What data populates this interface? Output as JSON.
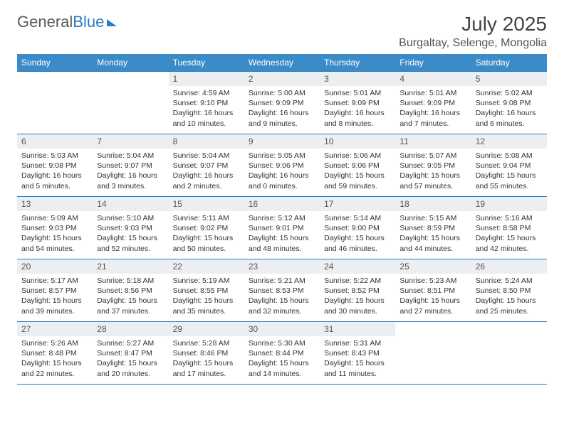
{
  "brand": {
    "part1": "General",
    "part2": "Blue"
  },
  "title": "July 2025",
  "location": "Burgaltay, Selenge, Mongolia",
  "colors": {
    "header_bg": "#3b8bc9",
    "border": "#2d7bc0",
    "daynum_bg": "#eceff1",
    "text": "#333333"
  },
  "day_labels": [
    "Sunday",
    "Monday",
    "Tuesday",
    "Wednesday",
    "Thursday",
    "Friday",
    "Saturday"
  ],
  "weeks": [
    [
      null,
      null,
      {
        "n": "1",
        "sr": "4:59 AM",
        "ss": "9:10 PM",
        "dl": "16 hours and 10 minutes."
      },
      {
        "n": "2",
        "sr": "5:00 AM",
        "ss": "9:09 PM",
        "dl": "16 hours and 9 minutes."
      },
      {
        "n": "3",
        "sr": "5:01 AM",
        "ss": "9:09 PM",
        "dl": "16 hours and 8 minutes."
      },
      {
        "n": "4",
        "sr": "5:01 AM",
        "ss": "9:09 PM",
        "dl": "16 hours and 7 minutes."
      },
      {
        "n": "5",
        "sr": "5:02 AM",
        "ss": "9:08 PM",
        "dl": "16 hours and 6 minutes."
      }
    ],
    [
      {
        "n": "6",
        "sr": "5:03 AM",
        "ss": "9:08 PM",
        "dl": "16 hours and 5 minutes."
      },
      {
        "n": "7",
        "sr": "5:04 AM",
        "ss": "9:07 PM",
        "dl": "16 hours and 3 minutes."
      },
      {
        "n": "8",
        "sr": "5:04 AM",
        "ss": "9:07 PM",
        "dl": "16 hours and 2 minutes."
      },
      {
        "n": "9",
        "sr": "5:05 AM",
        "ss": "9:06 PM",
        "dl": "16 hours and 0 minutes."
      },
      {
        "n": "10",
        "sr": "5:06 AM",
        "ss": "9:06 PM",
        "dl": "15 hours and 59 minutes."
      },
      {
        "n": "11",
        "sr": "5:07 AM",
        "ss": "9:05 PM",
        "dl": "15 hours and 57 minutes."
      },
      {
        "n": "12",
        "sr": "5:08 AM",
        "ss": "9:04 PM",
        "dl": "15 hours and 55 minutes."
      }
    ],
    [
      {
        "n": "13",
        "sr": "5:09 AM",
        "ss": "9:03 PM",
        "dl": "15 hours and 54 minutes."
      },
      {
        "n": "14",
        "sr": "5:10 AM",
        "ss": "9:03 PM",
        "dl": "15 hours and 52 minutes."
      },
      {
        "n": "15",
        "sr": "5:11 AM",
        "ss": "9:02 PM",
        "dl": "15 hours and 50 minutes."
      },
      {
        "n": "16",
        "sr": "5:12 AM",
        "ss": "9:01 PM",
        "dl": "15 hours and 48 minutes."
      },
      {
        "n": "17",
        "sr": "5:14 AM",
        "ss": "9:00 PM",
        "dl": "15 hours and 46 minutes."
      },
      {
        "n": "18",
        "sr": "5:15 AM",
        "ss": "8:59 PM",
        "dl": "15 hours and 44 minutes."
      },
      {
        "n": "19",
        "sr": "5:16 AM",
        "ss": "8:58 PM",
        "dl": "15 hours and 42 minutes."
      }
    ],
    [
      {
        "n": "20",
        "sr": "5:17 AM",
        "ss": "8:57 PM",
        "dl": "15 hours and 39 minutes."
      },
      {
        "n": "21",
        "sr": "5:18 AM",
        "ss": "8:56 PM",
        "dl": "15 hours and 37 minutes."
      },
      {
        "n": "22",
        "sr": "5:19 AM",
        "ss": "8:55 PM",
        "dl": "15 hours and 35 minutes."
      },
      {
        "n": "23",
        "sr": "5:21 AM",
        "ss": "8:53 PM",
        "dl": "15 hours and 32 minutes."
      },
      {
        "n": "24",
        "sr": "5:22 AM",
        "ss": "8:52 PM",
        "dl": "15 hours and 30 minutes."
      },
      {
        "n": "25",
        "sr": "5:23 AM",
        "ss": "8:51 PM",
        "dl": "15 hours and 27 minutes."
      },
      {
        "n": "26",
        "sr": "5:24 AM",
        "ss": "8:50 PM",
        "dl": "15 hours and 25 minutes."
      }
    ],
    [
      {
        "n": "27",
        "sr": "5:26 AM",
        "ss": "8:48 PM",
        "dl": "15 hours and 22 minutes."
      },
      {
        "n": "28",
        "sr": "5:27 AM",
        "ss": "8:47 PM",
        "dl": "15 hours and 20 minutes."
      },
      {
        "n": "29",
        "sr": "5:28 AM",
        "ss": "8:46 PM",
        "dl": "15 hours and 17 minutes."
      },
      {
        "n": "30",
        "sr": "5:30 AM",
        "ss": "8:44 PM",
        "dl": "15 hours and 14 minutes."
      },
      {
        "n": "31",
        "sr": "5:31 AM",
        "ss": "8:43 PM",
        "dl": "15 hours and 11 minutes."
      },
      null,
      null
    ]
  ],
  "labels": {
    "sunrise": "Sunrise:",
    "sunset": "Sunset:",
    "daylight": "Daylight:"
  }
}
